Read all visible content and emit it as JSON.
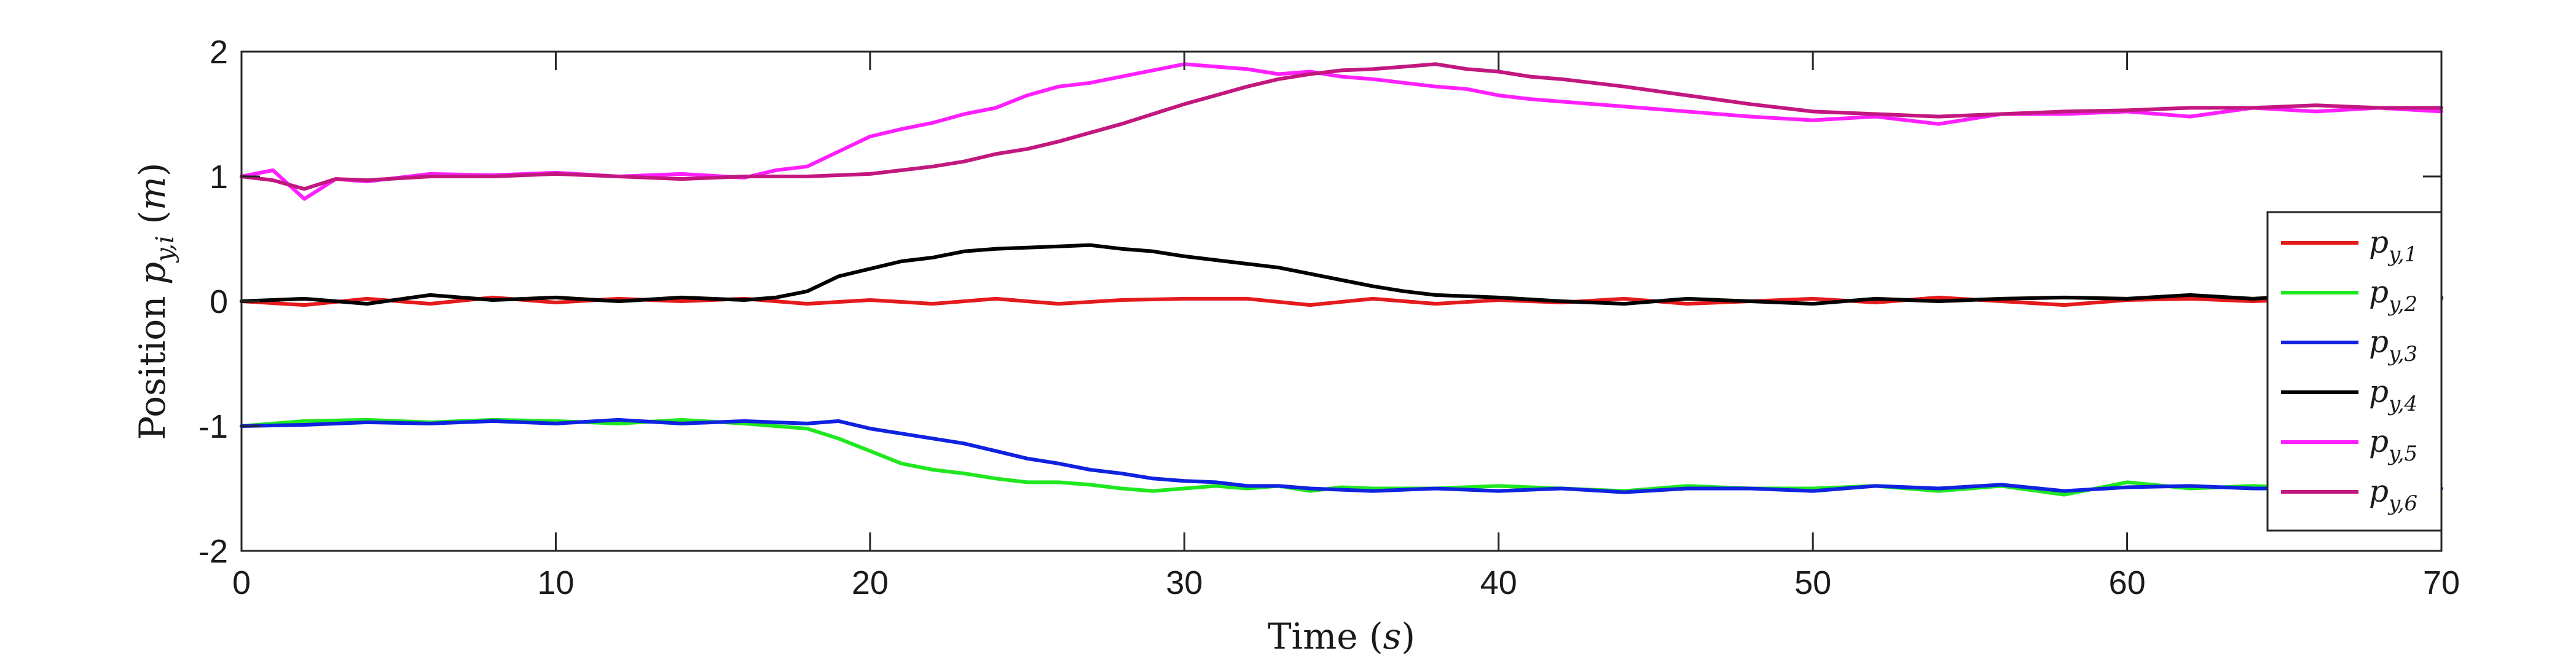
{
  "chart_data": {
    "type": "line",
    "xlabel": "Time (s)",
    "ylabel": "Position p_{y,i} (m)",
    "xlim": [
      0,
      70
    ],
    "ylim": [
      -2,
      2
    ],
    "xticks": [
      "0",
      "10",
      "20",
      "30",
      "40",
      "50",
      "60",
      "70"
    ],
    "yticks": [
      "-2",
      "-1",
      "0",
      "1",
      "2"
    ],
    "grid": false,
    "legend_position": "right",
    "series": [
      {
        "name": "p_{y,1}",
        "color": "#e41a1c",
        "x": [
          0,
          2,
          4,
          6,
          8,
          10,
          12,
          14,
          16,
          18,
          20,
          22,
          24,
          26,
          28,
          30,
          32,
          34,
          36,
          38,
          40,
          42,
          44,
          46,
          48,
          50,
          52,
          54,
          56,
          58,
          60,
          62,
          64,
          66,
          68,
          70
        ],
        "y": [
          0,
          -0.03,
          0.02,
          -0.02,
          0.03,
          -0.01,
          0.02,
          0,
          0.02,
          -0.02,
          0.01,
          -0.02,
          0.02,
          -0.02,
          0.01,
          0.02,
          0.02,
          -0.03,
          0.02,
          -0.02,
          0.01,
          -0.01,
          0.02,
          -0.02,
          0,
          0.02,
          -0.01,
          0.03,
          0,
          -0.03,
          0.01,
          0.02,
          0,
          0.02,
          -0.01,
          0.02
        ]
      },
      {
        "name": "p_{y,2}",
        "color": "#1fe81f",
        "x": [
          0,
          2,
          4,
          6,
          8,
          10,
          12,
          14,
          16,
          18,
          19,
          20,
          21,
          22,
          23,
          24,
          25,
          26,
          27,
          28,
          29,
          30,
          31,
          32,
          33,
          34,
          35,
          36,
          38,
          40,
          42,
          44,
          46,
          48,
          50,
          52,
          54,
          56,
          58,
          60,
          62,
          64,
          66,
          68,
          70
        ],
        "y": [
          -1,
          -0.96,
          -0.95,
          -0.97,
          -0.95,
          -0.96,
          -0.98,
          -0.95,
          -0.98,
          -1.02,
          -1.1,
          -1.2,
          -1.3,
          -1.35,
          -1.38,
          -1.42,
          -1.45,
          -1.45,
          -1.47,
          -1.5,
          -1.52,
          -1.5,
          -1.48,
          -1.5,
          -1.48,
          -1.52,
          -1.49,
          -1.5,
          -1.5,
          -1.48,
          -1.5,
          -1.52,
          -1.48,
          -1.5,
          -1.5,
          -1.48,
          -1.52,
          -1.48,
          -1.55,
          -1.45,
          -1.5,
          -1.48,
          -1.5,
          -1.48,
          -1.5
        ]
      },
      {
        "name": "p_{y,3}",
        "color": "#0f22e0",
        "x": [
          0,
          2,
          4,
          6,
          8,
          10,
          12,
          14,
          16,
          18,
          19,
          20,
          21,
          22,
          23,
          24,
          25,
          26,
          27,
          28,
          29,
          30,
          31,
          32,
          33,
          34,
          36,
          38,
          40,
          42,
          44,
          46,
          48,
          50,
          52,
          54,
          56,
          58,
          60,
          62,
          64,
          66,
          68,
          70
        ],
        "y": [
          -1,
          -0.99,
          -0.97,
          -0.98,
          -0.96,
          -0.98,
          -0.95,
          -0.98,
          -0.96,
          -0.98,
          -0.96,
          -1.02,
          -1.06,
          -1.1,
          -1.14,
          -1.2,
          -1.26,
          -1.3,
          -1.35,
          -1.38,
          -1.42,
          -1.44,
          -1.45,
          -1.48,
          -1.48,
          -1.5,
          -1.52,
          -1.5,
          -1.52,
          -1.5,
          -1.53,
          -1.5,
          -1.5,
          -1.52,
          -1.48,
          -1.5,
          -1.47,
          -1.52,
          -1.49,
          -1.48,
          -1.5,
          -1.5,
          -1.48,
          -1.5
        ]
      },
      {
        "name": "p_{y,4}",
        "color": "#000000",
        "x": [
          0,
          2,
          4,
          6,
          8,
          10,
          12,
          14,
          16,
          17,
          18,
          19,
          20,
          21,
          22,
          23,
          24,
          25,
          26,
          27,
          28,
          29,
          30,
          31,
          32,
          33,
          34,
          35,
          36,
          37,
          38,
          40,
          42,
          44,
          46,
          48,
          50,
          52,
          54,
          56,
          58,
          60,
          62,
          64,
          66,
          68,
          70
        ],
        "y": [
          0,
          0.02,
          -0.02,
          0.05,
          0.01,
          0.03,
          0,
          0.03,
          0.01,
          0.03,
          0.08,
          0.2,
          0.26,
          0.32,
          0.35,
          0.4,
          0.42,
          0.43,
          0.44,
          0.45,
          0.42,
          0.4,
          0.36,
          0.33,
          0.3,
          0.27,
          0.22,
          0.17,
          0.12,
          0.08,
          0.05,
          0.03,
          0,
          -0.02,
          0.02,
          0,
          -0.02,
          0.02,
          0,
          0.02,
          0.03,
          0.02,
          0.05,
          0.02,
          0.05,
          0.02,
          0.03
        ]
      },
      {
        "name": "p_{y,5}",
        "color": "#ff1fff",
        "x": [
          0,
          1,
          2,
          3,
          4,
          6,
          8,
          10,
          12,
          14,
          16,
          17,
          18,
          19,
          20,
          21,
          22,
          23,
          24,
          25,
          26,
          27,
          28,
          29,
          30,
          31,
          32,
          33,
          34,
          35,
          36,
          37,
          38,
          39,
          40,
          41,
          42,
          44,
          46,
          48,
          50,
          52,
          54,
          56,
          58,
          60,
          62,
          64,
          66,
          68,
          70
        ],
        "y": [
          1,
          1.05,
          0.82,
          0.98,
          0.96,
          1.02,
          1.01,
          1.03,
          1,
          1.02,
          0.99,
          1.05,
          1.08,
          1.2,
          1.32,
          1.38,
          1.43,
          1.5,
          1.55,
          1.65,
          1.72,
          1.75,
          1.8,
          1.85,
          1.9,
          1.88,
          1.86,
          1.82,
          1.84,
          1.8,
          1.78,
          1.75,
          1.72,
          1.7,
          1.65,
          1.62,
          1.6,
          1.56,
          1.52,
          1.48,
          1.45,
          1.48,
          1.42,
          1.5,
          1.5,
          1.52,
          1.48,
          1.55,
          1.52,
          1.55,
          1.52
        ]
      },
      {
        "name": "p_{y,6}",
        "color": "#c2177f",
        "x": [
          0,
          1,
          2,
          3,
          4,
          6,
          8,
          10,
          12,
          14,
          16,
          18,
          20,
          21,
          22,
          23,
          24,
          25,
          26,
          27,
          28,
          29,
          30,
          31,
          32,
          33,
          34,
          35,
          36,
          37,
          38,
          39,
          40,
          41,
          42,
          44,
          46,
          48,
          50,
          52,
          54,
          56,
          58,
          60,
          62,
          64,
          66,
          68,
          70
        ],
        "y": [
          1,
          0.97,
          0.9,
          0.98,
          0.97,
          1,
          1,
          1.02,
          1,
          0.98,
          1,
          1,
          1.02,
          1.05,
          1.08,
          1.12,
          1.18,
          1.22,
          1.28,
          1.35,
          1.42,
          1.5,
          1.58,
          1.65,
          1.72,
          1.78,
          1.82,
          1.85,
          1.86,
          1.88,
          1.9,
          1.86,
          1.84,
          1.8,
          1.78,
          1.72,
          1.65,
          1.58,
          1.52,
          1.5,
          1.48,
          1.5,
          1.52,
          1.53,
          1.55,
          1.55,
          1.57,
          1.55,
          1.55
        ]
      }
    ]
  },
  "legend": {
    "entries": [
      {
        "base": "p",
        "sub": "y,1"
      },
      {
        "base": "p",
        "sub": "y,2"
      },
      {
        "base": "p",
        "sub": "y,3"
      },
      {
        "base": "p",
        "sub": "y,4"
      },
      {
        "base": "p",
        "sub": "y,5"
      },
      {
        "base": "p",
        "sub": "y,6"
      }
    ]
  },
  "labels": {
    "x_title_prefix": "Time (",
    "x_title_var": "s",
    "x_title_suffix": ")",
    "y_title_prefix": "Position ",
    "y_title_var": "p",
    "y_title_sub": "y,i",
    "y_title_unit_open": " (",
    "y_title_unit": "m",
    "y_title_unit_close": ")"
  }
}
